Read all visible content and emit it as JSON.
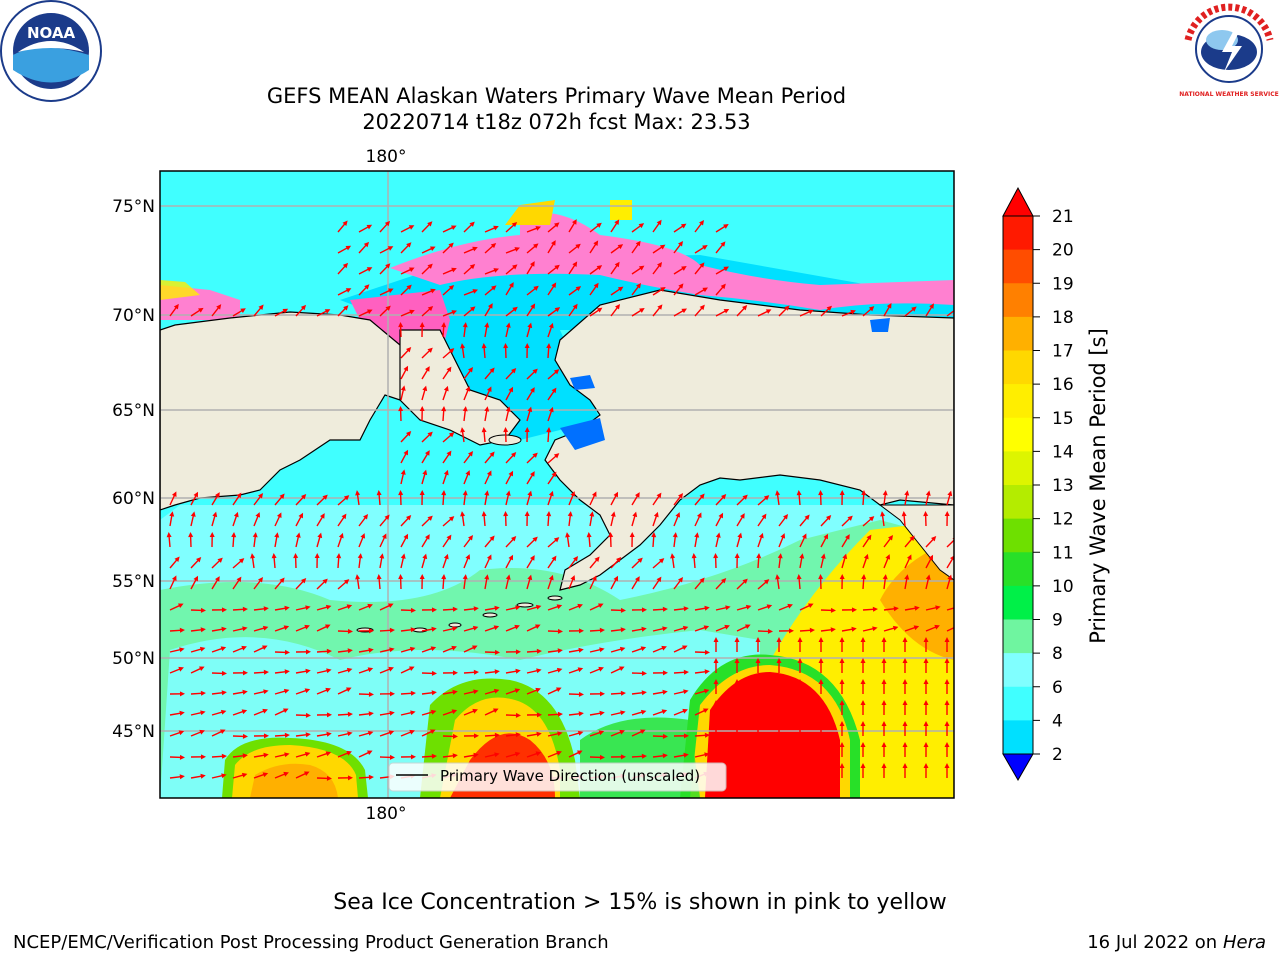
{
  "title_line1": "GEFS MEAN Alaskan Waters Primary Wave Mean Period",
  "title_line2": "20220714 t18z 072h fcst   Max: 23.53",
  "map": {
    "lat_labels": [
      "75°N",
      "70°N",
      "65°N",
      "60°N",
      "55°N",
      "50°N",
      "45°N"
    ],
    "lon_label_top": "180°",
    "lon_label_bottom": "180°",
    "legend_text": "Primary Wave Direction (unscaled)",
    "land_color": "#efecdc",
    "arrow_color": "#ff0000"
  },
  "colorbar": {
    "label": "Primary Wave Mean Period [s]",
    "ticks": [
      "21",
      "20",
      "19",
      "18",
      "17",
      "16",
      "15",
      "14",
      "13",
      "12",
      "11",
      "10",
      "9",
      "8",
      "6",
      "4",
      "2"
    ],
    "colors": [
      "#ff1a00",
      "#ff4d00",
      "#ff8000",
      "#ffb000",
      "#ffd800",
      "#ffee00",
      "#ffff00",
      "#ddf500",
      "#b4ec00",
      "#6ee000",
      "#28e028",
      "#00f048",
      "#6ff5a0",
      "#80ffff",
      "#40ffff",
      "#00e0ff",
      "#0070ff"
    ],
    "under_color": "#0000ff",
    "over_color": "#ff0000"
  },
  "footer_note": "Sea Ice Concentration > 15% is shown in pink to yellow",
  "footer_left": "NCEP/EMC/Verification Post Processing Product Generation Branch",
  "footer_right_date": "16 Jul 2022 on",
  "footer_right_host": "Hera",
  "logos": {
    "noaa_text": "NOAA",
    "nws_text": "NATIONAL WEATHER SERVICE"
  }
}
